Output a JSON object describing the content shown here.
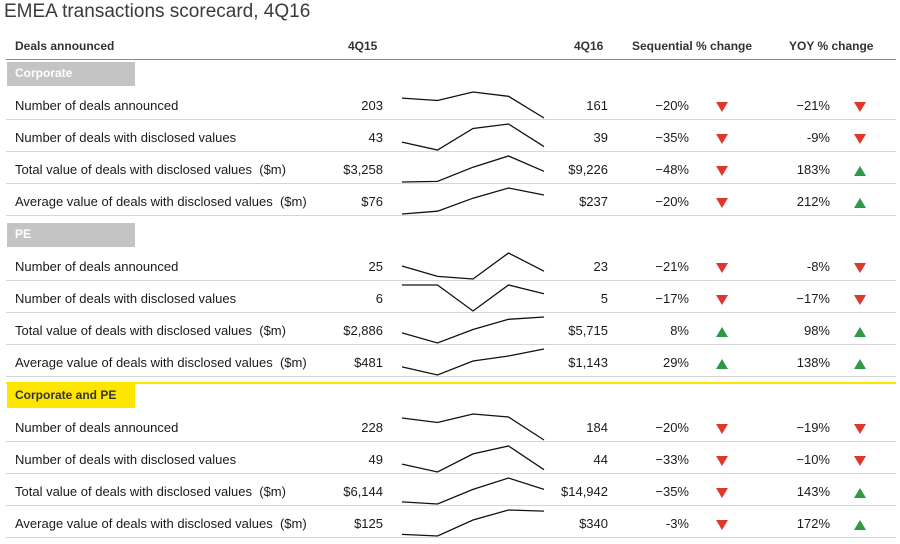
{
  "title": "EMEA transactions scorecard, 4Q16",
  "headers": {
    "label": "Deals announced",
    "q15": "4Q15",
    "q16": "4Q16",
    "seq": "Sequential % change",
    "yoy": "YOY % change"
  },
  "colors": {
    "up": "#2e9a47",
    "down": "#e0362c",
    "section_gray": "#c4c4c4",
    "section_yellow": "#ffe600"
  },
  "chart_data": {
    "type": "table",
    "sparklines": true,
    "sections": [
      {
        "name": "Corporate",
        "rows": [
          {
            "label": "Number of deals announced",
            "q15": "203",
            "q16": "161",
            "seq": "−20%",
            "seq_dir": "down",
            "yoy": "−21%",
            "yoy_dir": "down",
            "trend": [
              203,
              198,
              216,
              207,
              161
            ]
          },
          {
            "label": "Number of deals with disclosed values",
            "q15": "43",
            "q16": "39",
            "seq": "−35%",
            "seq_dir": "down",
            "yoy": "-9%",
            "yoy_dir": "down",
            "trend": [
              43,
              36,
              55,
              59,
              39
            ]
          },
          {
            "label": "Total value of deals with disclosed values  ($m)",
            "q15": "$3,258",
            "q16": "$9,226",
            "seq": "−48%",
            "seq_dir": "down",
            "yoy": "183%",
            "yoy_dir": "up",
            "trend": [
              3258,
              3600,
              11500,
              17700,
              9226
            ]
          },
          {
            "label": "Average value of deals with disclosed values  ($m)",
            "q15": "$76",
            "q16": "$237",
            "seq": "−20%",
            "seq_dir": "down",
            "yoy": "212%",
            "yoy_dir": "up",
            "trend": [
              76,
              100,
              210,
              296,
              237
            ]
          }
        ]
      },
      {
        "name": "PE",
        "rows": [
          {
            "label": "Number of deals announced",
            "q15": "25",
            "q16": "23",
            "seq": "−21%",
            "seq_dir": "down",
            "yoy": "-8%",
            "yoy_dir": "down",
            "trend": [
              25,
              21,
              20,
              30,
              23
            ]
          },
          {
            "label": "Number of deals with disclosed values",
            "q15": "6",
            "q16": "5",
            "seq": "−17%",
            "seq_dir": "down",
            "yoy": "−17%",
            "yoy_dir": "down",
            "trend": [
              6,
              6,
              3,
              6,
              5
            ]
          },
          {
            "label": "Total value of deals with disclosed values  ($m)",
            "q15": "$2,886",
            "q16": "$5,715",
            "seq": "8%",
            "seq_dir": "up",
            "yoy": "98%",
            "yoy_dir": "up",
            "trend": [
              2886,
              1100,
              3500,
              5300,
              5715
            ]
          },
          {
            "label": "Average value of deals with disclosed values  ($m)",
            "q15": "$481",
            "q16": "$1,143",
            "seq": "29%",
            "seq_dir": "up",
            "yoy": "138%",
            "yoy_dir": "up",
            "trend": [
              481,
              183,
              700,
              885,
              1143
            ]
          }
        ]
      },
      {
        "name": "Corporate and PE",
        "rows": [
          {
            "label": "Number of deals announced",
            "q15": "228",
            "q16": "184",
            "seq": "−20%",
            "seq_dir": "down",
            "yoy": "−19%",
            "yoy_dir": "down",
            "trend": [
              228,
              219,
              236,
              230,
              184
            ]
          },
          {
            "label": "Number of deals with disclosed values",
            "q15": "49",
            "q16": "44",
            "seq": "−33%",
            "seq_dir": "down",
            "yoy": "−10%",
            "yoy_dir": "down",
            "trend": [
              49,
              42,
              58,
              65,
              44
            ]
          },
          {
            "label": "Total value of deals with disclosed values  ($m)",
            "q15": "$6,144",
            "q16": "$14,942",
            "seq": "−35%",
            "seq_dir": "down",
            "yoy": "143%",
            "yoy_dir": "up",
            "trend": [
              6144,
              4700,
              15000,
              23000,
              14942
            ]
          },
          {
            "label": "Average value of deals with disclosed values  ($m)",
            "q15": "$125",
            "q16": "$340",
            "seq": "-3%",
            "seq_dir": "down",
            "yoy": "172%",
            "yoy_dir": "up",
            "trend": [
              125,
              110,
              258,
              350,
              340
            ]
          }
        ]
      }
    ]
  }
}
